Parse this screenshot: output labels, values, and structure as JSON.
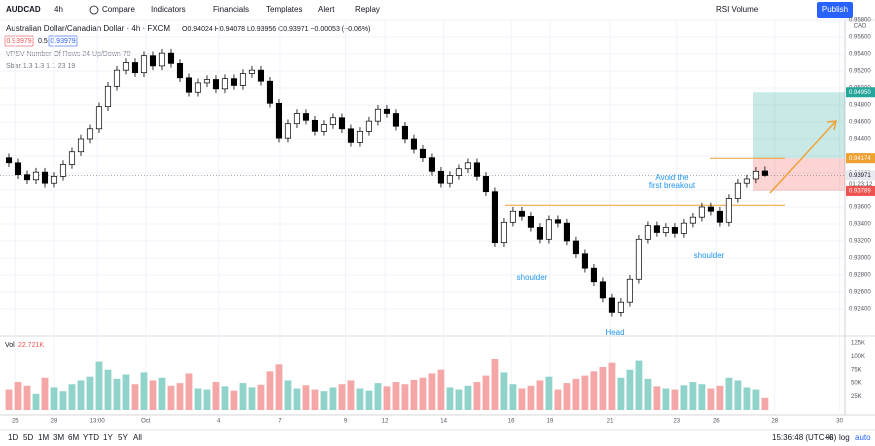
{
  "toolbar": {
    "symbol": "AUDCAD",
    "interval": "4h",
    "items": [
      "Compare",
      "Indicators",
      "Financials",
      "Templates",
      "Alert",
      "Replay"
    ],
    "layout": "RSI Volume",
    "publish": "Publish"
  },
  "legend": {
    "title": "Australian Dollar/Canadian Dollar · 4h · FXCM",
    "ohlc": "O0.94024 H0.94078 L0.93956 C0.93971 −0.00053 (−0.06%)",
    "bid": "0.93979",
    "spread": "0.5",
    "ask": "0.93979",
    "indicators": [
      "VPSV Number Of Rows 24 Up/Down 70",
      "Sbar 1.3 1.3 1 1 23 19"
    ]
  },
  "bottom_bar": {
    "ranges": [
      "1D",
      "5D",
      "1M",
      "3M",
      "6M",
      "YTD",
      "1Y",
      "5Y",
      "All"
    ],
    "clock": "15:36:48 (UTC+8)",
    "options": [
      "%",
      "log",
      "auto"
    ]
  },
  "chart_data": {
    "type": "candlestick",
    "currency": "CAD",
    "up_color": "#ffffff",
    "down_color": "#000000",
    "volume_up_color": "#8fd3cb",
    "volume_down_color": "#f5a6a6",
    "xlim": [
      -1,
      92.9
    ],
    "ylim": [
      0.92094,
      0.958
    ],
    "xticks": [
      {
        "value": 0.7,
        "label": "25"
      },
      {
        "value": 5,
        "label": "28"
      },
      {
        "value": 9.8,
        "label": "13:00"
      },
      {
        "value": 15.2,
        "label": "Oct"
      },
      {
        "value": 23.3,
        "label": "4"
      },
      {
        "value": 30.1,
        "label": "7"
      },
      {
        "value": 37.4,
        "label": "9"
      },
      {
        "value": 41.8,
        "label": "12"
      },
      {
        "value": 48.3,
        "label": "14"
      },
      {
        "value": 55.8,
        "label": "16"
      },
      {
        "value": 60.1,
        "label": "19"
      },
      {
        "value": 66.8,
        "label": "21"
      },
      {
        "value": 74.2,
        "label": "23"
      },
      {
        "value": 78.6,
        "label": "26"
      },
      {
        "value": 85.1,
        "label": "28"
      },
      {
        "value": 92.3,
        "label": "30"
      }
    ],
    "yticks": [
      {
        "value": 0.958,
        "label": "0.95800"
      },
      {
        "value": 0.956,
        "label": "0.95600"
      },
      {
        "value": 0.954,
        "label": "0.95400"
      },
      {
        "value": 0.952,
        "label": "0.95200"
      },
      {
        "value": 0.95,
        "label": "0.95000"
      },
      {
        "value": 0.948,
        "label": "0.94800"
      },
      {
        "value": 0.946,
        "label": "0.94600"
      },
      {
        "value": 0.944,
        "label": "0.94400"
      },
      {
        "value": 0.942,
        "label": "0.94200"
      },
      {
        "value": 0.94,
        "label": "0.94000"
      },
      {
        "value": 0.938,
        "label": "0.93800"
      },
      {
        "value": 0.936,
        "label": "0.93600"
      },
      {
        "value": 0.934,
        "label": "0.93400"
      },
      {
        "value": 0.932,
        "label": "0.93200"
      },
      {
        "value": 0.93,
        "label": "0.93000"
      },
      {
        "value": 0.928,
        "label": "0.92800"
      },
      {
        "value": 0.926,
        "label": "0.92600"
      },
      {
        "value": 0.924,
        "label": "0.92400"
      }
    ],
    "open": [
      0.9418,
      0.9412,
      0.9398,
      0.9392,
      0.9401,
      0.9388,
      0.9396,
      0.941,
      0.9425,
      0.944,
      0.9452,
      0.9478,
      0.9502,
      0.9521,
      0.953,
      0.9518,
      0.9538,
      0.9526,
      0.9541,
      0.9529,
      0.9512,
      0.9495,
      0.9506,
      0.951,
      0.9499,
      0.9511,
      0.9503,
      0.9517,
      0.9521,
      0.9508,
      0.9482,
      0.9441,
      0.9458,
      0.947,
      0.9462,
      0.9449,
      0.9457,
      0.9465,
      0.9452,
      0.9436,
      0.9449,
      0.9461,
      0.9475,
      0.947,
      0.9455,
      0.944,
      0.9428,
      0.9418,
      0.9402,
      0.9388,
      0.9397,
      0.9405,
      0.9412,
      0.9396,
      0.9378,
      0.9318,
      0.9342,
      0.9355,
      0.9349,
      0.9336,
      0.9322,
      0.9345,
      0.9341,
      0.932,
      0.9305,
      0.9288,
      0.9272,
      0.9253,
      0.9236,
      0.9248,
      0.9275,
      0.9322,
      0.9338,
      0.933,
      0.9336,
      0.9329,
      0.9341,
      0.9348,
      0.936,
      0.9355,
      0.9342,
      0.937,
      0.9388,
      0.9393,
      0.94024
    ],
    "high": [
      0.9423,
      0.9417,
      0.9403,
      0.9406,
      0.9406,
      0.9401,
      0.9415,
      0.943,
      0.9445,
      0.9457,
      0.9483,
      0.9507,
      0.9526,
      0.9535,
      0.9535,
      0.9543,
      0.9543,
      0.9546,
      0.9546,
      0.9534,
      0.9517,
      0.9511,
      0.9515,
      0.9515,
      0.9516,
      0.9516,
      0.9522,
      0.9526,
      0.9526,
      0.9513,
      0.9487,
      0.9463,
      0.9475,
      0.9475,
      0.9467,
      0.9462,
      0.947,
      0.947,
      0.9457,
      0.9454,
      0.9466,
      0.948,
      0.948,
      0.9475,
      0.946,
      0.9445,
      0.9433,
      0.9423,
      0.9407,
      0.9402,
      0.941,
      0.9417,
      0.9417,
      0.9401,
      0.9383,
      0.9347,
      0.936,
      0.936,
      0.9354,
      0.9341,
      0.935,
      0.935,
      0.9346,
      0.9325,
      0.931,
      0.9293,
      0.9277,
      0.9258,
      0.9253,
      0.928,
      0.9327,
      0.9343,
      0.9343,
      0.9341,
      0.9341,
      0.9346,
      0.9353,
      0.9365,
      0.9365,
      0.936,
      0.9375,
      0.9393,
      0.9398,
      0.9407,
      0.94078
    ],
    "low": [
      0.9407,
      0.9393,
      0.9387,
      0.9387,
      0.9383,
      0.9383,
      0.9391,
      0.9405,
      0.942,
      0.9435,
      0.9447,
      0.9473,
      0.9497,
      0.9516,
      0.9513,
      0.9513,
      0.9521,
      0.9521,
      0.9524,
      0.9507,
      0.949,
      0.949,
      0.9501,
      0.9494,
      0.9494,
      0.9498,
      0.9498,
      0.9512,
      0.9503,
      0.9477,
      0.9436,
      0.9436,
      0.9453,
      0.9457,
      0.9444,
      0.9444,
      0.9452,
      0.9447,
      0.9431,
      0.9431,
      0.9444,
      0.9456,
      0.9465,
      0.945,
      0.9435,
      0.9423,
      0.9413,
      0.9397,
      0.9383,
      0.9383,
      0.9392,
      0.94,
      0.9391,
      0.9373,
      0.9313,
      0.9313,
      0.9337,
      0.9344,
      0.9331,
      0.9317,
      0.9317,
      0.9336,
      0.9315,
      0.93,
      0.9283,
      0.9267,
      0.9248,
      0.9231,
      0.9231,
      0.9243,
      0.927,
      0.9317,
      0.9325,
      0.9325,
      0.9324,
      0.9324,
      0.9336,
      0.9343,
      0.935,
      0.9337,
      0.9337,
      0.9365,
      0.9383,
      0.9388,
      0.93956
    ],
    "close": [
      0.9412,
      0.9398,
      0.9392,
      0.9401,
      0.9388,
      0.9396,
      0.941,
      0.9425,
      0.944,
      0.9452,
      0.9478,
      0.9502,
      0.9521,
      0.953,
      0.9518,
      0.9538,
      0.9526,
      0.9541,
      0.9529,
      0.9512,
      0.9495,
      0.9506,
      0.951,
      0.9499,
      0.9511,
      0.9503,
      0.9517,
      0.9521,
      0.9508,
      0.9482,
      0.9441,
      0.9458,
      0.947,
      0.9462,
      0.9449,
      0.9457,
      0.9465,
      0.9452,
      0.9436,
      0.9449,
      0.9461,
      0.9475,
      0.947,
      0.9455,
      0.944,
      0.9428,
      0.9418,
      0.9402,
      0.9388,
      0.9397,
      0.9405,
      0.9412,
      0.9396,
      0.9378,
      0.9318,
      0.9342,
      0.9355,
      0.9349,
      0.9336,
      0.9322,
      0.9345,
      0.9341,
      0.932,
      0.9305,
      0.9288,
      0.9272,
      0.9253,
      0.9236,
      0.9248,
      0.9275,
      0.9322,
      0.9338,
      0.933,
      0.9336,
      0.9329,
      0.9341,
      0.9348,
      0.936,
      0.9355,
      0.9342,
      0.937,
      0.9388,
      0.9393,
      0.9402,
      0.93971
    ],
    "volume_legend": [
      "Vol",
      "22.721K"
    ],
    "volume_ylim": [
      0,
      134000
    ],
    "volume_ticks": [
      {
        "value": 125000,
        "label": "125K"
      },
      {
        "value": 100000,
        "label": "100K"
      },
      {
        "value": 75000,
        "label": "75K"
      },
      {
        "value": 50000,
        "label": "50K"
      },
      {
        "value": 25000,
        "label": "25K"
      }
    ],
    "volume": [
      38000,
      52000,
      45000,
      30000,
      60000,
      42000,
      35000,
      48000,
      55000,
      62000,
      90000,
      75000,
      58000,
      66000,
      48000,
      70000,
      55000,
      60000,
      45000,
      50000,
      68000,
      40000,
      38000,
      52000,
      44000,
      36000,
      50000,
      42000,
      47000,
      72000,
      85000,
      55000,
      40000,
      46000,
      38000,
      35000,
      42000,
      48000,
      55000,
      40000,
      36000,
      50000,
      44000,
      52000,
      48000,
      56000,
      60000,
      68000,
      75000,
      42000,
      38000,
      45000,
      52000,
      64000,
      95000,
      70000,
      48000,
      40000,
      45000,
      55000,
      62000,
      38000,
      50000,
      58000,
      64000,
      72000,
      80000,
      88000,
      60000,
      75000,
      92000,
      58000,
      44000,
      40000,
      38000,
      46000,
      52000,
      48000,
      40000,
      45000,
      60000,
      55000,
      42000,
      38000,
      22721
    ],
    "price_tags": [
      {
        "value": 0.9495,
        "label": "0.94950",
        "color": "#26a69a"
      },
      {
        "value": 0.94174,
        "label": "0.94174",
        "color": "#f0a030"
      },
      {
        "value": 0.93971,
        "label": "0.93971",
        "color": "#e8eaf0"
      },
      {
        "value": 0.93789,
        "label": "0.93789",
        "color": "#ef5350"
      }
    ],
    "countdown": "01:23:12",
    "neckline": 0.9362,
    "annotations": [
      "shoulder",
      "Head",
      "shoulder",
      "Avoid the",
      "first breakout"
    ]
  }
}
